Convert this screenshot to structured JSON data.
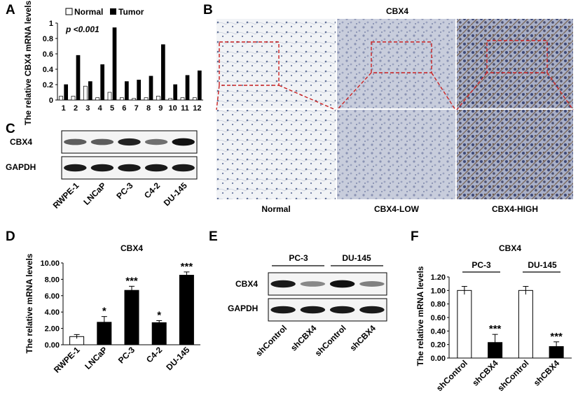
{
  "panels": {
    "A": {
      "letter": "A"
    },
    "B": {
      "letter": "B",
      "title": "CBX4",
      "columns": [
        "Normal",
        "CBX4-LOW",
        "CBX4-HIGH"
      ]
    },
    "C": {
      "letter": "C",
      "rows": [
        "CBX4",
        "GAPDH"
      ],
      "lanes": [
        "RWPE-1",
        "LNCaP",
        "PC-3",
        "C4-2",
        "DU-145"
      ]
    },
    "D": {
      "letter": "D"
    },
    "E": {
      "letter": "E",
      "groups": [
        "PC-3",
        "DU-145"
      ],
      "rows": [
        "CBX4",
        "GAPDH"
      ],
      "lanes": [
        "shControl",
        "shCBX4",
        "shControl",
        "shCBX4"
      ]
    },
    "F": {
      "letter": "F"
    }
  },
  "chart_data": [
    {
      "id": "A",
      "type": "bar",
      "title": "",
      "ylabel": "The relative CBX4 mRNA levels",
      "xlabel": "",
      "annotation": "p <0.001",
      "categories": [
        "1",
        "2",
        "3",
        "4",
        "5",
        "6",
        "7",
        "8",
        "9",
        "10",
        "11",
        "12"
      ],
      "ylim": [
        0,
        1
      ],
      "yticks": [
        "0",
        "0.2",
        "0.4",
        "0.6",
        "0.8",
        "1"
      ],
      "legend_position": "top",
      "series": [
        {
          "name": "Normal",
          "color": "#ffffff",
          "values": [
            0.05,
            0.05,
            0.18,
            0.03,
            0.1,
            0.03,
            0.02,
            0.03,
            0.05,
            0.02,
            0.03,
            0.03
          ]
        },
        {
          "name": "Tumor",
          "color": "#000000",
          "values": [
            0.2,
            0.58,
            0.24,
            0.46,
            0.94,
            0.24,
            0.26,
            0.31,
            0.72,
            0.2,
            0.32,
            0.38
          ]
        }
      ]
    },
    {
      "id": "D",
      "type": "bar",
      "title": "CBX4",
      "ylabel": "The relative mRNA levels",
      "categories": [
        "RWPE-1",
        "LNCaP",
        "PC-3",
        "C4-2",
        "DU-145"
      ],
      "ylim": [
        0,
        10
      ],
      "yticks": [
        "0.00",
        "2.00",
        "4.00",
        "6.00",
        "8.00",
        "10.00"
      ],
      "values": [
        1.0,
        2.75,
        6.65,
        2.7,
        8.5
      ],
      "errors": [
        0.25,
        0.7,
        0.5,
        0.25,
        0.4
      ],
      "colors": [
        "#ffffff",
        "#000000",
        "#000000",
        "#000000",
        "#000000"
      ],
      "significance": [
        "",
        "*",
        "***",
        "*",
        "***"
      ]
    },
    {
      "id": "F",
      "type": "bar",
      "title": "CBX4",
      "ylabel": "The relative mRNA levels",
      "groups": [
        "PC-3",
        "DU-145"
      ],
      "categories": [
        "shControl",
        "shCBX4",
        "shControl",
        "shCBX4"
      ],
      "ylim": [
        0,
        1.2
      ],
      "yticks": [
        "0.00",
        "0.20",
        "0.40",
        "0.60",
        "0.80",
        "1.00",
        "1.20"
      ],
      "values": [
        1.0,
        0.23,
        1.0,
        0.17
      ],
      "errors": [
        0.06,
        0.12,
        0.06,
        0.07
      ],
      "colors": [
        "#ffffff",
        "#000000",
        "#ffffff",
        "#000000"
      ],
      "significance": [
        "",
        "***",
        "",
        "***"
      ]
    }
  ]
}
